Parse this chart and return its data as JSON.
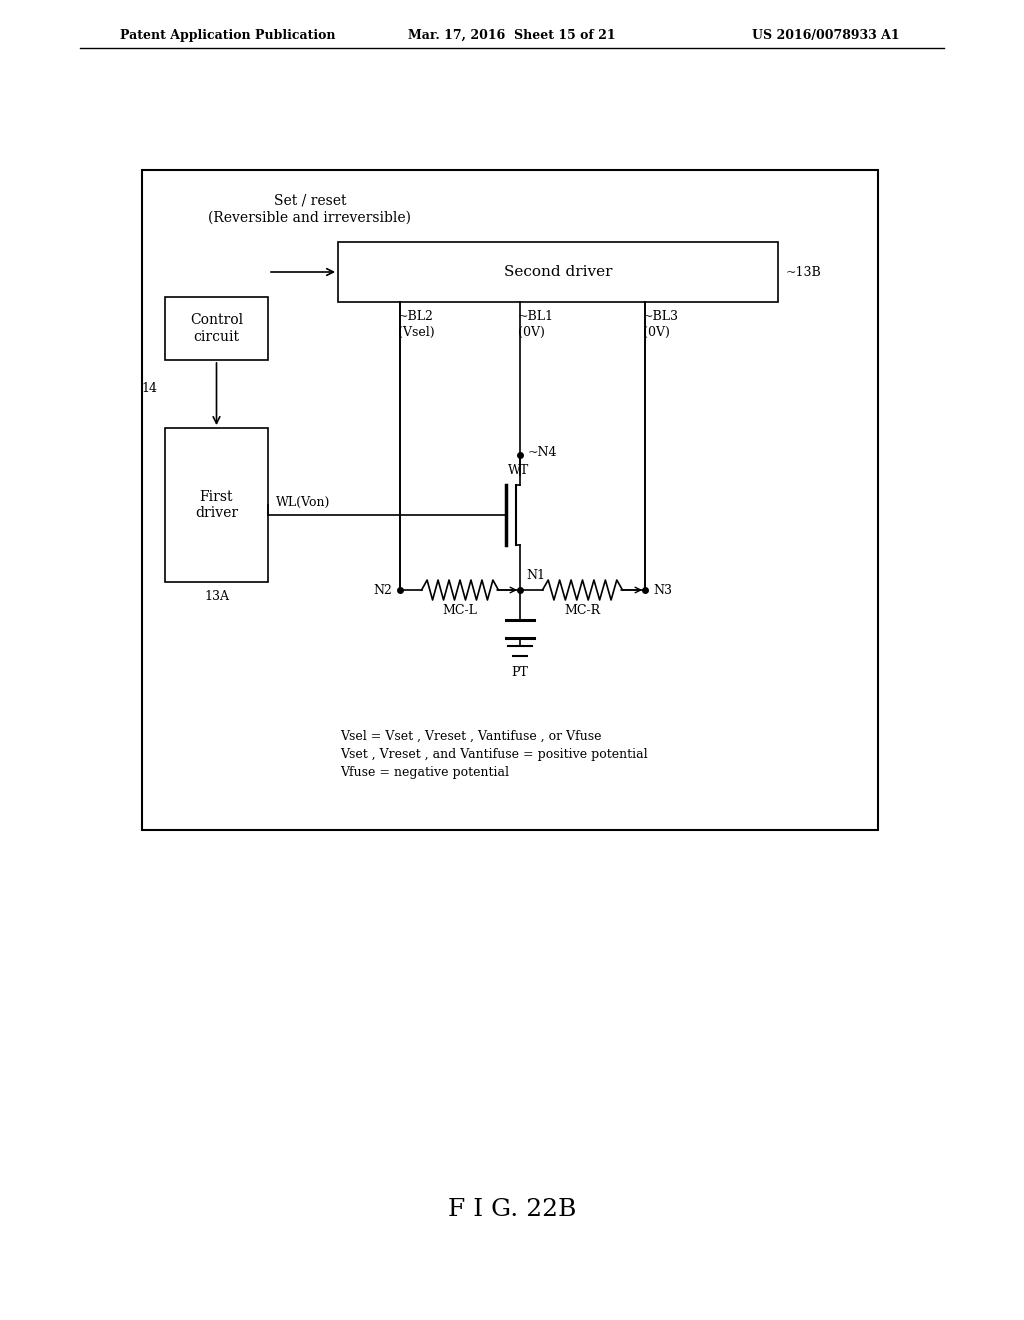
{
  "bg_color": "#ffffff",
  "header_left": "Patent Application Publication",
  "header_mid": "Mar. 17, 2016  Sheet 15 of 21",
  "header_right": "US 2016/0078933 A1",
  "figure_label": "F I G. 22B",
  "title_line1": "Set / reset",
  "title_line2": "(Reversible and irreversible)",
  "label_13B": "~13B",
  "label_14": "14",
  "label_13A": "13A",
  "label_WL": "WL(Von)",
  "label_N4": "~N4",
  "label_N1": "N1",
  "label_N2": "N2",
  "label_N3": "N3",
  "label_WT": "WT",
  "label_MCL": "MC-L",
  "label_MCR": "MC-R",
  "label_PT": "PT",
  "annotation_line1": "Vsel = Vset , Vreset , Vantifuse , or Vfuse",
  "annotation_line2": "Vset , Vreset , and Vantifuse = positive potential",
  "annotation_line3": "Vfuse = negative potential",
  "font_size_header": 9,
  "font_size_label": 9,
  "font_size_figure": 18,
  "font_size_box": 10,
  "font_size_annot": 9
}
